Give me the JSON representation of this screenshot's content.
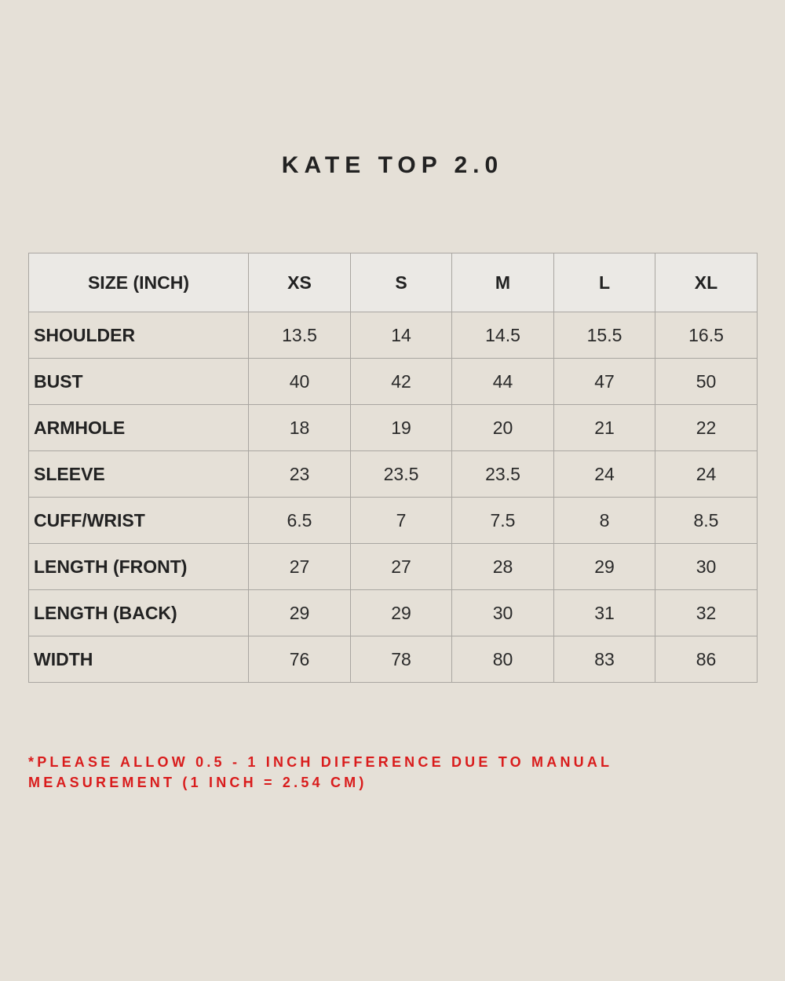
{
  "title": "KATE TOP 2.0",
  "table": {
    "headers": [
      "SIZE (INCH)",
      "XS",
      "S",
      "M",
      "L",
      "XL"
    ],
    "rows": [
      {
        "label": "SHOULDER",
        "values": [
          "13.5",
          "14",
          "14.5",
          "15.5",
          "16.5"
        ]
      },
      {
        "label": "BUST",
        "values": [
          "40",
          "42",
          "44",
          "47",
          "50"
        ]
      },
      {
        "label": "ARMHOLE",
        "values": [
          "18",
          "19",
          "20",
          "21",
          "22"
        ]
      },
      {
        "label": "SLEEVE",
        "values": [
          "23",
          "23.5",
          "23.5",
          "24",
          "24"
        ]
      },
      {
        "label": "CUFF/WRIST",
        "values": [
          "6.5",
          "7",
          "7.5",
          "8",
          "8.5"
        ]
      },
      {
        "label": "LENGTH (FRONT)",
        "values": [
          "27",
          "27",
          "28",
          "29",
          "30"
        ]
      },
      {
        "label": "LENGTH (BACK)",
        "values": [
          "29",
          "29",
          "30",
          "31",
          "32"
        ]
      },
      {
        "label": "WIDTH",
        "values": [
          "76",
          "78",
          "80",
          "83",
          "86"
        ]
      }
    ]
  },
  "note": {
    "line1": "*PLEASE ALLOW 0.5 - 1 INCH DIFFERENCE DUE TO MANUAL",
    "line2": "MEASUREMENT (1 INCH = 2.54 CM)",
    "color": "#d91c1c"
  }
}
